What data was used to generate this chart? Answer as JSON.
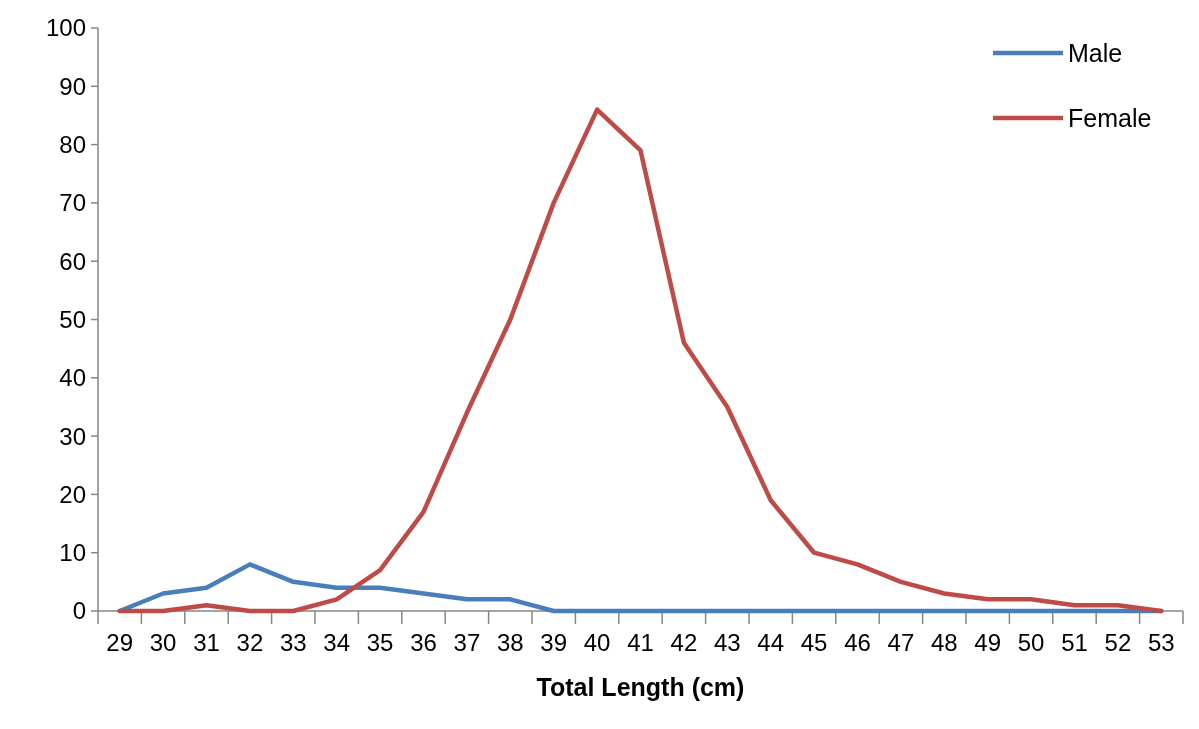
{
  "chart_data": {
    "type": "line",
    "xlabel": "Total Length (cm)",
    "categories": [
      "29",
      "30",
      "31",
      "32",
      "33",
      "34",
      "35",
      "36",
      "37",
      "38",
      "39",
      "40",
      "41",
      "42",
      "43",
      "44",
      "45",
      "46",
      "47",
      "48",
      "49",
      "50",
      "51",
      "52",
      "53"
    ],
    "series": [
      {
        "name": "Male",
        "color": "#4a7ebb",
        "values": [
          0,
          3,
          4,
          8,
          5,
          4,
          4,
          3,
          2,
          2,
          0,
          0,
          0,
          0,
          0,
          0,
          0,
          0,
          0,
          0,
          0,
          0,
          0,
          0,
          0
        ]
      },
      {
        "name": "Female",
        "color": "#be4b48",
        "values": [
          0,
          0,
          1,
          0,
          0,
          2,
          7,
          17,
          34,
          50,
          70,
          86,
          79,
          46,
          35,
          19,
          10,
          8,
          5,
          3,
          2,
          2,
          1,
          1,
          0
        ]
      }
    ],
    "ylim": [
      0,
      100
    ],
    "yticks": [
      0,
      10,
      20,
      30,
      40,
      50,
      60,
      70,
      80,
      90,
      100
    ],
    "grid": false,
    "legend": "top right",
    "marker": "none",
    "line_style": "solid"
  }
}
